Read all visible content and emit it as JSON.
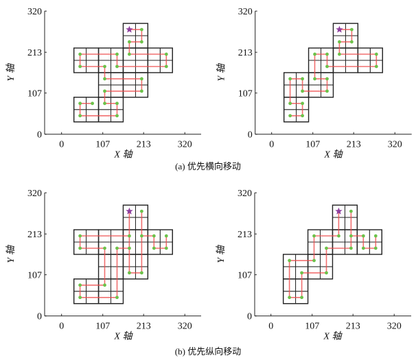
{
  "figure": {
    "captions": [
      "(a) 优先横向移动",
      "(b) 优先纵向移动"
    ],
    "colors": {
      "grid": "#222222",
      "path": "#ee4b4b",
      "dot": "#6cc24a",
      "star": "#8e3f9e"
    }
  },
  "chart_data": [
    {
      "type": "diagram-grid-path",
      "group": "(a) 优先横向移动",
      "xlabel": "X 轴",
      "ylabel": "Y 轴",
      "xticks": [
        "0",
        "107",
        "213",
        "320"
      ],
      "yticks": [
        "0",
        "107",
        "213",
        "320"
      ],
      "xlim": [
        0,
        320
      ],
      "ylim": [
        0,
        320
      ],
      "cell_size": 32,
      "blocks": [
        [
          1,
          1
        ],
        [
          3,
          1
        ],
        [
          3,
          3
        ],
        [
          5,
          3
        ],
        [
          1,
          5
        ],
        [
          3,
          5
        ],
        [
          5,
          5
        ],
        [
          7,
          5
        ],
        [
          5,
          7
        ]
      ],
      "start": [
        5,
        8
      ],
      "paths": [
        [
          [
            5,
            8
          ],
          [
            6,
            8
          ],
          [
            6,
            7
          ],
          [
            5,
            7
          ],
          [
            5,
            6
          ],
          [
            8,
            6
          ],
          [
            8,
            5
          ],
          [
            4,
            5
          ],
          [
            4,
            6
          ],
          [
            1,
            6
          ],
          [
            1,
            5
          ],
          [
            3,
            5
          ],
          [
            3,
            4
          ],
          [
            6,
            4
          ],
          [
            6,
            3
          ],
          [
            3,
            3
          ],
          [
            3,
            2
          ],
          [
            4,
            2
          ],
          [
            4,
            1
          ],
          [
            1,
            1
          ],
          [
            1,
            2
          ],
          [
            2,
            2
          ]
        ]
      ]
    },
    {
      "type": "diagram-grid-path",
      "group": "(a) 优先横向移动",
      "xlabel": "X 轴",
      "ylabel": "Y 轴",
      "xticks": [
        "0",
        "107",
        "213",
        "320"
      ],
      "yticks": [
        "0",
        "107",
        "213",
        "320"
      ],
      "xlim": [
        0,
        320
      ],
      "ylim": [
        0,
        320
      ],
      "cell_size": 32,
      "blocks": [
        [
          1,
          1
        ],
        [
          1,
          3
        ],
        [
          3,
          3
        ],
        [
          3,
          5
        ],
        [
          5,
          5
        ],
        [
          7,
          5
        ],
        [
          5,
          7
        ]
      ],
      "start": [
        5,
        8
      ],
      "paths": [
        [
          [
            5,
            8
          ],
          [
            6,
            8
          ],
          [
            6,
            7
          ],
          [
            5,
            7
          ],
          [
            5,
            6
          ],
          [
            8,
            6
          ],
          [
            8,
            5
          ],
          [
            4,
            5
          ],
          [
            4,
            6
          ],
          [
            3,
            6
          ],
          [
            3,
            4
          ],
          [
            4,
            4
          ],
          [
            4,
            3
          ],
          [
            2,
            3
          ],
          [
            2,
            4
          ],
          [
            1,
            4
          ],
          [
            1,
            2
          ],
          [
            2,
            2
          ],
          [
            2,
            1
          ],
          [
            1,
            1
          ]
        ]
      ]
    },
    {
      "type": "diagram-grid-path",
      "group": "(b) 优先纵向移动",
      "xlabel": "X 轴",
      "ylabel": "Y 轴",
      "xticks": [
        "0",
        "107",
        "213",
        "320"
      ],
      "yticks": [
        "0",
        "107",
        "213",
        "320"
      ],
      "xlim": [
        0,
        320
      ],
      "ylim": [
        0,
        320
      ],
      "cell_size": 32,
      "blocks": [
        [
          1,
          1
        ],
        [
          3,
          1
        ],
        [
          3,
          3
        ],
        [
          5,
          3
        ],
        [
          1,
          5
        ],
        [
          3,
          5
        ],
        [
          5,
          5
        ],
        [
          7,
          5
        ],
        [
          5,
          7
        ]
      ],
      "start": [
        5,
        8
      ],
      "paths": [
        [
          [
            5,
            8
          ],
          [
            5,
            6
          ],
          [
            1,
            6
          ],
          [
            1,
            5
          ],
          [
            3,
            5
          ],
          [
            3,
            2
          ],
          [
            1,
            2
          ],
          [
            1,
            1
          ],
          [
            4,
            1
          ],
          [
            4,
            5
          ],
          [
            5,
            5
          ]
        ],
        [
          [
            5,
            6
          ],
          [
            5,
            3
          ],
          [
            6,
            3
          ],
          [
            6,
            8
          ]
        ],
        [
          [
            6,
            6
          ],
          [
            7,
            6
          ],
          [
            7,
            5
          ],
          [
            8,
            5
          ],
          [
            8,
            6
          ]
        ]
      ]
    },
    {
      "type": "diagram-grid-path",
      "group": "(b) 优先纵向移动",
      "xlabel": "X 轴",
      "ylabel": "Y 轴",
      "xticks": [
        "0",
        "107",
        "213",
        "320"
      ],
      "yticks": [
        "0",
        "107",
        "213",
        "320"
      ],
      "xlim": [
        0,
        320
      ],
      "ylim": [
        0,
        320
      ],
      "cell_size": 32,
      "blocks": [
        [
          1,
          1
        ],
        [
          1,
          3
        ],
        [
          3,
          3
        ],
        [
          3,
          5
        ],
        [
          5,
          5
        ],
        [
          7,
          5
        ],
        [
          5,
          7
        ]
      ],
      "start": [
        5,
        8
      ],
      "paths": [
        [
          [
            5,
            8
          ],
          [
            5,
            6
          ],
          [
            3,
            6
          ],
          [
            3,
            4
          ],
          [
            1,
            4
          ],
          [
            1,
            1
          ],
          [
            2,
            1
          ],
          [
            2,
            3
          ],
          [
            4,
            3
          ],
          [
            4,
            5
          ],
          [
            6,
            5
          ],
          [
            6,
            8
          ]
        ],
        [
          [
            6,
            6
          ],
          [
            7,
            6
          ],
          [
            7,
            5
          ],
          [
            8,
            5
          ],
          [
            8,
            6
          ]
        ]
      ]
    }
  ]
}
